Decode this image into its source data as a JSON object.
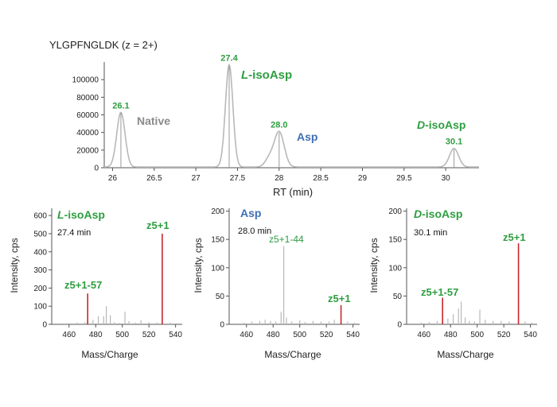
{
  "colors": {
    "green": "#2e9e40",
    "blue": "#3f6fb5",
    "gray": "#8a8a8a",
    "red": "#c8262f",
    "trace": "#b8b8b8",
    "axis": "#555555"
  },
  "chromatogram": {
    "title": "YLGPFNGLDK (z = 2+)",
    "xlabel": "RT (min)",
    "labels": {
      "native": "Native",
      "l_prefix": "L",
      "l_suffix": "-isoAsp",
      "asp": "Asp",
      "d_prefix": "D",
      "d_suffix": "-isoAsp"
    }
  },
  "spectra": [
    {
      "title_prefix": "L",
      "title_suffix": "-isoAsp",
      "time": "27.4 min",
      "ylabel": "Intensity, cps",
      "xlabel": "Mass/Charge",
      "label_hi": "z5+1",
      "label_lo": "z5+1-57"
    },
    {
      "title": "Asp",
      "time": "28.0 min",
      "ylabel": "Intensity, cps",
      "xlabel": "Mass/Charge",
      "label_hi": "z5+1-44",
      "label_lo": "z5+1"
    },
    {
      "title_prefix": "D",
      "title_suffix": "-isoAsp",
      "time": "30.1 min",
      "ylabel": "Intensity, cps",
      "xlabel": "Mass/Charge",
      "label_hi": "z5+1",
      "label_lo": "z5+1-57"
    }
  ],
  "chart_data": [
    {
      "type": "line",
      "title": "YLGPFNGLDK (z = 2+)",
      "xlabel": "RT (min)",
      "ylabel": "",
      "xlim": [
        25.9,
        30.4
      ],
      "ylim": [
        0,
        120000
      ],
      "xticks": [
        "26",
        "26.5",
        "27",
        "27.5",
        "28",
        "28.5",
        "29",
        "29.5",
        "30"
      ],
      "yticks": [
        "0",
        "20000",
        "40000",
        "60000",
        "80000",
        "100000"
      ],
      "peaks": [
        {
          "name": "Native",
          "rt": 26.1,
          "rt_label": "26.1",
          "height": 62000,
          "width": 0.05
        },
        {
          "name": "L-isoAsp",
          "rt": 27.4,
          "rt_label": "27.4",
          "height": 116000,
          "width": 0.045
        },
        {
          "name": "Asp",
          "rt": 28.0,
          "rt_label": "28.0",
          "height": 40000,
          "width": 0.06
        },
        {
          "name": "D-isoAsp",
          "rt": 30.1,
          "rt_label": "30.1",
          "height": 21000,
          "width": 0.055
        }
      ]
    },
    {
      "type": "bar",
      "title": "L-isoAsp",
      "xlabel": "Mass/Charge",
      "ylabel": "Intensity, cps",
      "xlim": [
        447,
        545
      ],
      "ylim": [
        0,
        640
      ],
      "xticks": [
        "460",
        "480",
        "500",
        "520",
        "540"
      ],
      "yticks": [
        "0",
        "100",
        "200",
        "300",
        "400",
        "500",
        "600"
      ],
      "peaks": [
        {
          "mz": 460,
          "i": 6
        },
        {
          "mz": 466,
          "i": 10
        },
        {
          "mz": 472,
          "i": 12
        },
        {
          "mz": 474,
          "i": 170,
          "highlight": true
        },
        {
          "mz": 478,
          "i": 25
        },
        {
          "mz": 482,
          "i": 45
        },
        {
          "mz": 486,
          "i": 45
        },
        {
          "mz": 488,
          "i": 100
        },
        {
          "mz": 491,
          "i": 50
        },
        {
          "mz": 494,
          "i": 12
        },
        {
          "mz": 498,
          "i": 8
        },
        {
          "mz": 502,
          "i": 70
        },
        {
          "mz": 505,
          "i": 18
        },
        {
          "mz": 510,
          "i": 10
        },
        {
          "mz": 514,
          "i": 22
        },
        {
          "mz": 520,
          "i": 12
        },
        {
          "mz": 526,
          "i": 10
        },
        {
          "mz": 530,
          "i": 500,
          "highlight": true
        },
        {
          "mz": 536,
          "i": 10
        },
        {
          "mz": 541,
          "i": 6
        }
      ]
    },
    {
      "type": "bar",
      "title": "Asp",
      "xlabel": "Mass/Charge",
      "ylabel": "Intensity, cps",
      "xlim": [
        447,
        545
      ],
      "ylim": [
        0,
        205
      ],
      "xticks": [
        "460",
        "480",
        "500",
        "520",
        "540"
      ],
      "yticks": [
        "0",
        "50",
        "100",
        "150",
        "200"
      ],
      "peaks": [
        {
          "mz": 458,
          "i": 3
        },
        {
          "mz": 464,
          "i": 5
        },
        {
          "mz": 470,
          "i": 6
        },
        {
          "mz": 474,
          "i": 8
        },
        {
          "mz": 478,
          "i": 6
        },
        {
          "mz": 482,
          "i": 5
        },
        {
          "mz": 486,
          "i": 22
        },
        {
          "mz": 488,
          "i": 138
        },
        {
          "mz": 490,
          "i": 12
        },
        {
          "mz": 494,
          "i": 5
        },
        {
          "mz": 500,
          "i": 7
        },
        {
          "mz": 504,
          "i": 4
        },
        {
          "mz": 510,
          "i": 6
        },
        {
          "mz": 516,
          "i": 5
        },
        {
          "mz": 522,
          "i": 5
        },
        {
          "mz": 526,
          "i": 8
        },
        {
          "mz": 531,
          "i": 34,
          "highlight": true
        },
        {
          "mz": 536,
          "i": 5
        },
        {
          "mz": 541,
          "i": 3
        }
      ]
    },
    {
      "type": "bar",
      "title": "D-isoAsp",
      "xlabel": "Mass/Charge",
      "ylabel": "Intensity, cps",
      "xlim": [
        447,
        545
      ],
      "ylim": [
        0,
        205
      ],
      "xticks": [
        "460",
        "480",
        "500",
        "520",
        "540"
      ],
      "yticks": [
        "0",
        "50",
        "100",
        "150",
        "200"
      ],
      "peaks": [
        {
          "mz": 458,
          "i": 3
        },
        {
          "mz": 464,
          "i": 4
        },
        {
          "mz": 470,
          "i": 6
        },
        {
          "mz": 474,
          "i": 47,
          "highlight": true
        },
        {
          "mz": 478,
          "i": 10
        },
        {
          "mz": 482,
          "i": 18
        },
        {
          "mz": 486,
          "i": 28
        },
        {
          "mz": 488,
          "i": 40
        },
        {
          "mz": 491,
          "i": 12
        },
        {
          "mz": 494,
          "i": 6
        },
        {
          "mz": 498,
          "i": 5
        },
        {
          "mz": 502,
          "i": 26
        },
        {
          "mz": 506,
          "i": 8
        },
        {
          "mz": 512,
          "i": 6
        },
        {
          "mz": 518,
          "i": 6
        },
        {
          "mz": 524,
          "i": 5
        },
        {
          "mz": 531,
          "i": 143,
          "highlight": true
        },
        {
          "mz": 536,
          "i": 5
        },
        {
          "mz": 541,
          "i": 3
        }
      ]
    }
  ]
}
